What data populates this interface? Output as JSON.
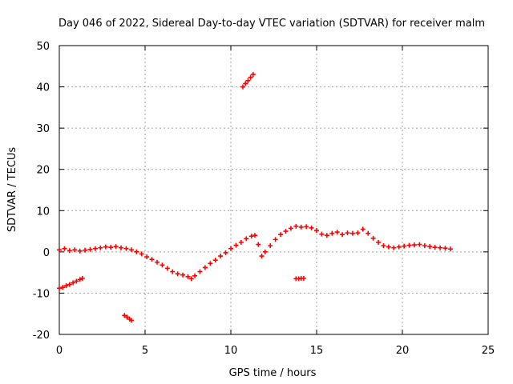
{
  "chart_data": {
    "type": "scatter",
    "title": "Day 046 of 2022, Sidereal Day-to-day VTEC variation (SDTVAR) for receiver malm",
    "xlabel": "GPS time / hours",
    "ylabel": "SDTVAR / TECUs",
    "xlim": [
      0,
      25
    ],
    "ylim": [
      -20,
      50
    ],
    "xticks": [
      0,
      5,
      10,
      15,
      20,
      25
    ],
    "yticks": [
      -20,
      -10,
      0,
      10,
      20,
      30,
      40,
      50
    ],
    "grid": true,
    "marker": "+",
    "color": "#ff0000",
    "series": [
      {
        "name": "main",
        "points": [
          [
            0.0,
            0.5
          ],
          [
            0.3,
            0.8
          ],
          [
            0.6,
            0.3
          ],
          [
            0.9,
            0.5
          ],
          [
            1.2,
            0.2
          ],
          [
            1.5,
            0.4
          ],
          [
            1.8,
            0.6
          ],
          [
            2.1,
            0.8
          ],
          [
            2.4,
            1.0
          ],
          [
            2.7,
            1.2
          ],
          [
            3.0,
            1.1
          ],
          [
            3.3,
            1.3
          ],
          [
            3.6,
            1.0
          ],
          [
            3.9,
            0.8
          ],
          [
            4.2,
            0.5
          ],
          [
            4.5,
            0.0
          ],
          [
            4.8,
            -0.5
          ],
          [
            5.1,
            -1.2
          ],
          [
            5.4,
            -1.8
          ],
          [
            5.7,
            -2.5
          ],
          [
            6.0,
            -3.2
          ],
          [
            6.3,
            -4.0
          ],
          [
            6.6,
            -4.8
          ],
          [
            6.9,
            -5.3
          ],
          [
            7.2,
            -5.6
          ],
          [
            7.5,
            -6.0
          ],
          [
            7.7,
            -6.5
          ],
          [
            7.9,
            -5.8
          ],
          [
            8.2,
            -4.8
          ],
          [
            8.5,
            -3.8
          ],
          [
            8.8,
            -2.8
          ],
          [
            9.1,
            -2.0
          ],
          [
            9.4,
            -1.0
          ],
          [
            9.7,
            -0.2
          ],
          [
            10.0,
            0.8
          ],
          [
            10.3,
            1.6
          ],
          [
            10.6,
            2.3
          ],
          [
            10.9,
            3.2
          ],
          [
            11.2,
            3.8
          ],
          [
            11.4,
            4.0
          ],
          [
            11.6,
            1.8
          ],
          [
            11.8,
            -1.0
          ],
          [
            12.0,
            0.0
          ],
          [
            12.3,
            1.5
          ],
          [
            12.6,
            3.0
          ],
          [
            12.9,
            4.2
          ],
          [
            13.2,
            5.0
          ],
          [
            13.5,
            5.7
          ],
          [
            13.8,
            6.2
          ],
          [
            14.1,
            6.0
          ],
          [
            14.4,
            6.1
          ],
          [
            14.7,
            5.8
          ],
          [
            15.0,
            5.2
          ],
          [
            15.3,
            4.3
          ],
          [
            15.6,
            4.0
          ],
          [
            15.9,
            4.5
          ],
          [
            16.2,
            4.8
          ],
          [
            16.5,
            4.2
          ],
          [
            16.8,
            4.6
          ],
          [
            17.1,
            4.5
          ],
          [
            17.4,
            4.6
          ],
          [
            17.7,
            5.5
          ],
          [
            18.0,
            4.5
          ],
          [
            18.3,
            3.3
          ],
          [
            18.6,
            2.3
          ],
          [
            18.9,
            1.5
          ],
          [
            19.2,
            1.2
          ],
          [
            19.5,
            1.0
          ],
          [
            19.8,
            1.2
          ],
          [
            20.1,
            1.4
          ],
          [
            20.4,
            1.6
          ],
          [
            20.7,
            1.7
          ],
          [
            21.0,
            1.8
          ],
          [
            21.3,
            1.5
          ],
          [
            21.6,
            1.3
          ],
          [
            21.9,
            1.1
          ],
          [
            22.2,
            1.0
          ],
          [
            22.5,
            0.9
          ],
          [
            22.8,
            0.7
          ]
        ]
      },
      {
        "name": "segment-early-negative",
        "points": [
          [
            0.0,
            -8.8
          ],
          [
            0.2,
            -8.6
          ],
          [
            0.4,
            -8.2
          ],
          [
            0.6,
            -7.9
          ],
          [
            0.8,
            -7.5
          ],
          [
            1.0,
            -7.1
          ],
          [
            1.2,
            -6.7
          ],
          [
            1.35,
            -6.4
          ]
        ]
      },
      {
        "name": "segment-low",
        "points": [
          [
            3.8,
            -15.4
          ],
          [
            3.95,
            -15.8
          ],
          [
            4.1,
            -16.3
          ],
          [
            4.2,
            -16.6
          ]
        ]
      },
      {
        "name": "segment-high",
        "points": [
          [
            10.7,
            40.0
          ],
          [
            10.85,
            40.8
          ],
          [
            11.0,
            41.5
          ],
          [
            11.15,
            42.3
          ],
          [
            11.3,
            43.0
          ]
        ]
      },
      {
        "name": "segment-mid",
        "points": [
          [
            13.8,
            -6.5
          ],
          [
            13.95,
            -6.5
          ],
          [
            14.1,
            -6.4
          ],
          [
            14.25,
            -6.4
          ]
        ]
      }
    ]
  }
}
